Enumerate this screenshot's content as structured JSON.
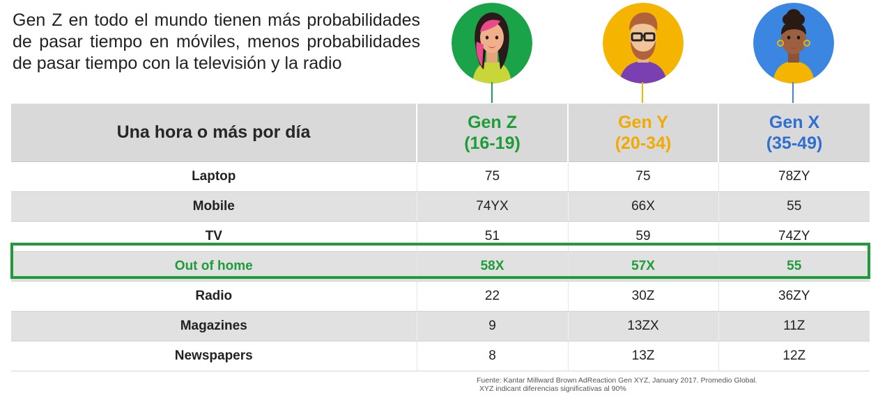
{
  "headline": "Gen Z en todo el mundo tienen más probabilidades de pasar tiempo en móviles, menos probabilidades de pasar tiempo con la televisión y la radio",
  "colors": {
    "gen_z": "#1e9c3a",
    "gen_y": "#f2a900",
    "gen_x": "#2f6fd0",
    "highlight": "#1e9c3a"
  },
  "avatars": [
    {
      "icon": "woman-pink-hair-avatar-icon",
      "bg": "#1ba34a"
    },
    {
      "icon": "man-glasses-beard-avatar-icon",
      "bg": "#f4b400"
    },
    {
      "icon": "woman-curly-hair-avatar-icon",
      "bg": "#3a86e0"
    }
  ],
  "table": {
    "header_label": "Una hora o más por día",
    "columns": [
      {
        "name": "Gen Z",
        "range": "(16-19)"
      },
      {
        "name": "Gen Y",
        "range": "(20-34)"
      },
      {
        "name": "Gen X",
        "range": "(35-49)"
      }
    ],
    "rows": [
      {
        "label": "Laptop",
        "values": [
          "75",
          "75",
          "78ZY"
        ]
      },
      {
        "label": "Mobile",
        "values": [
          "74YX",
          "66X",
          "55"
        ]
      },
      {
        "label": "TV",
        "values": [
          "51",
          "59",
          "74ZY"
        ]
      },
      {
        "label": "Out of home",
        "values": [
          "58X",
          "57X",
          "55"
        ],
        "highlighted": true
      },
      {
        "label": "Radio",
        "values": [
          "22",
          "30Z",
          "36ZY"
        ]
      },
      {
        "label": "Magazines",
        "values": [
          "9",
          "13ZX",
          "11Z"
        ]
      },
      {
        "label": "Newspapers",
        "values": [
          "8",
          "13Z",
          "12Z"
        ]
      }
    ]
  },
  "source": {
    "line1": "Fuente: Kantar Millward Brown AdReaction Gen XYZ, January 2017. Promedio Global.",
    "line2": "XYZ indicant diferencias significativas al 90%"
  }
}
